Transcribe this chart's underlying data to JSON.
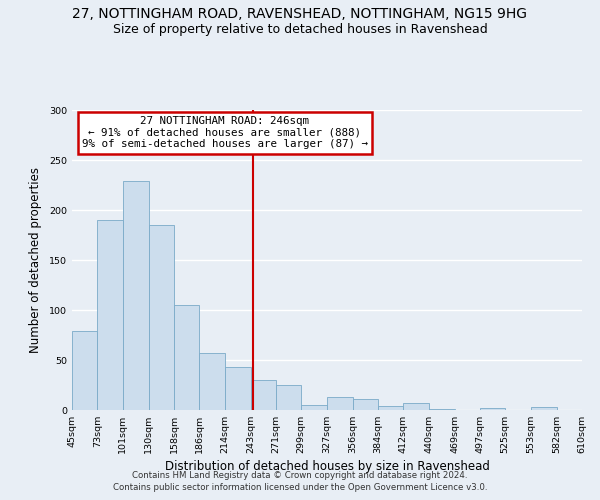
{
  "title": "27, NOTTINGHAM ROAD, RAVENSHEAD, NOTTINGHAM, NG15 9HG",
  "subtitle": "Size of property relative to detached houses in Ravenshead",
  "xlabel": "Distribution of detached houses by size in Ravenshead",
  "ylabel": "Number of detached properties",
  "bar_labels": [
    "45sqm",
    "73sqm",
    "101sqm",
    "130sqm",
    "158sqm",
    "186sqm",
    "214sqm",
    "243sqm",
    "271sqm",
    "299sqm",
    "327sqm",
    "356sqm",
    "384sqm",
    "412sqm",
    "440sqm",
    "469sqm",
    "497sqm",
    "525sqm",
    "553sqm",
    "582sqm",
    "610sqm"
  ],
  "bar_values": [
    79,
    190,
    229,
    185,
    105,
    57,
    43,
    30,
    25,
    5,
    13,
    11,
    4,
    7,
    1,
    0,
    2,
    0,
    3,
    0
  ],
  "bar_edges": [
    45,
    73,
    101,
    130,
    158,
    186,
    214,
    243,
    271,
    299,
    327,
    356,
    384,
    412,
    440,
    469,
    497,
    525,
    553,
    582,
    610
  ],
  "bar_color": "#ccdded",
  "bar_edge_color": "#7aaac8",
  "vline_x": 246,
  "vline_color": "#cc0000",
  "ylim": [
    0,
    300
  ],
  "yticks": [
    0,
    50,
    100,
    150,
    200,
    250,
    300
  ],
  "annotation_title": "27 NOTTINGHAM ROAD: 246sqm",
  "annotation_line1": "← 91% of detached houses are smaller (888)",
  "annotation_line2": "9% of semi-detached houses are larger (87) →",
  "annotation_box_color": "#cc0000",
  "footnote1": "Contains HM Land Registry data © Crown copyright and database right 2024.",
  "footnote2": "Contains public sector information licensed under the Open Government Licence v3.0.",
  "background_color": "#e8eef5",
  "plot_bg_color": "#e8eef5",
  "grid_color": "white",
  "title_fontsize": 10,
  "subtitle_fontsize": 9
}
